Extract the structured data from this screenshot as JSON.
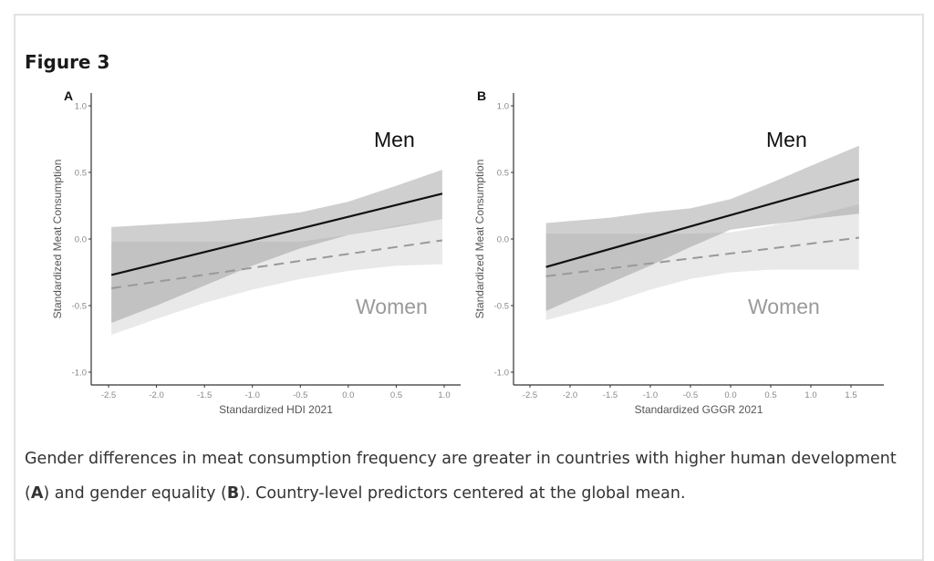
{
  "figure": {
    "title": "Figure 3",
    "caption": {
      "part1": "Gender differences in meat consumption frequency are greater in countries with higher human development (",
      "a": "A",
      "part2": ") and gender equality (",
      "b": "B",
      "part3": "). Country-level predictors centered at the global mean."
    }
  },
  "chart_data": [
    {
      "type": "line",
      "panel": "A",
      "xlabel": "Standardized HDI 2021",
      "ylabel": "Standardized Meat Consumption",
      "xticks": [
        -2.5,
        -2.0,
        -1.5,
        -1.0,
        -0.5,
        0.0,
        0.5,
        1.0
      ],
      "yticks": [
        -1.0,
        -0.5,
        0.0,
        0.5,
        1.0
      ],
      "ylim": [
        -1.1,
        1.1
      ],
      "grid": false,
      "annotations": [
        "Men",
        "Women"
      ],
      "series": [
        {
          "name": "Men",
          "style": "solid",
          "color": "#111111",
          "x": [
            -2.47,
            0.98
          ],
          "y": [
            -0.27,
            0.34
          ],
          "ci_x": [
            -2.47,
            -2.0,
            -1.5,
            -1.0,
            -0.5,
            0.0,
            0.5,
            0.98
          ],
          "ci_upper": [
            0.09,
            0.11,
            0.13,
            0.16,
            0.2,
            0.28,
            0.4,
            0.52
          ],
          "ci_lower": [
            -0.63,
            -0.5,
            -0.35,
            -0.2,
            -0.07,
            0.03,
            0.09,
            0.15
          ]
        },
        {
          "name": "Women",
          "style": "dashed",
          "color": "#999999",
          "x": [
            -2.47,
            0.98
          ],
          "y": [
            -0.37,
            -0.01
          ],
          "ci_x": [
            -2.47,
            -2.0,
            -1.5,
            -1.0,
            -0.5,
            0.0,
            0.5,
            0.98
          ],
          "ci_upper": [
            -0.02,
            -0.02,
            -0.02,
            -0.02,
            -0.02,
            0.03,
            0.1,
            0.15
          ],
          "ci_lower": [
            -0.72,
            -0.6,
            -0.48,
            -0.38,
            -0.3,
            -0.24,
            -0.2,
            -0.19
          ]
        }
      ]
    },
    {
      "type": "line",
      "panel": "B",
      "xlabel": "Standardized GGGR 2021",
      "ylabel": "Standardized Meat Consumption",
      "xticks": [
        -2.5,
        -2.0,
        -1.5,
        -1.0,
        -0.5,
        0.0,
        0.5,
        1.0,
        1.5
      ],
      "yticks": [
        -1.0,
        -0.5,
        0.0,
        0.5,
        1.0
      ],
      "ylim": [
        -1.1,
        1.1
      ],
      "grid": false,
      "annotations": [
        "Men",
        "Women"
      ],
      "series": [
        {
          "name": "Men",
          "style": "solid",
          "color": "#111111",
          "x": [
            -2.3,
            1.6
          ],
          "y": [
            -0.21,
            0.45
          ],
          "ci_x": [
            -2.3,
            -1.5,
            -1.0,
            -0.5,
            0.0,
            0.5,
            1.0,
            1.6
          ],
          "ci_upper": [
            0.12,
            0.16,
            0.2,
            0.23,
            0.3,
            0.42,
            0.55,
            0.7
          ],
          "ci_lower": [
            -0.54,
            -0.33,
            -0.2,
            -0.06,
            0.07,
            0.11,
            0.15,
            0.19
          ]
        },
        {
          "name": "Women",
          "style": "dashed",
          "color": "#999999",
          "x": [
            -2.3,
            1.6
          ],
          "y": [
            -0.28,
            0.01
          ],
          "ci_x": [
            -2.3,
            -1.5,
            -1.0,
            -0.5,
            0.0,
            0.5,
            1.0,
            1.6
          ],
          "ci_upper": [
            0.04,
            0.04,
            0.04,
            0.04,
            0.05,
            0.1,
            0.17,
            0.26
          ],
          "ci_lower": [
            -0.61,
            -0.48,
            -0.38,
            -0.3,
            -0.25,
            -0.23,
            -0.23,
            -0.23
          ]
        }
      ]
    }
  ]
}
